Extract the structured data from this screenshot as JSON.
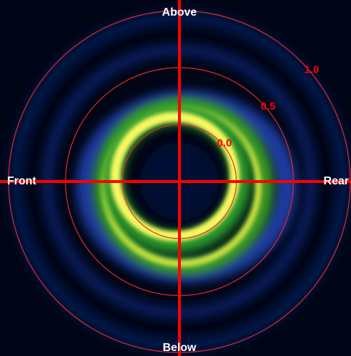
{
  "chart_data": {
    "type": "polar",
    "direction_labels": {
      "top": "Above",
      "bottom": "Below",
      "left": "Front",
      "right": "Rear"
    },
    "rlim": [
      -0.5,
      1.0
    ],
    "rticks": [
      {
        "value": 0,
        "label": "0.0"
      },
      0.5,
      {
        "value": 1,
        "label": "1.0"
      }
    ],
    "axis_color": "#ff0000",
    "ring_color": "#e02a2a"
  }
}
